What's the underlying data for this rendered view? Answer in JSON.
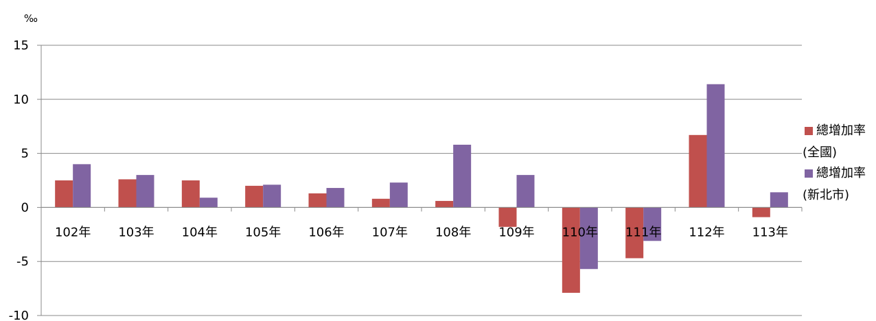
{
  "chart_data": {
    "type": "bar",
    "unit": "‰",
    "categories": [
      "102年",
      "103年",
      "104年",
      "105年",
      "106年",
      "107年",
      "108年",
      "109年",
      "110年",
      "111年",
      "112年",
      "113年"
    ],
    "series": [
      {
        "name": "總增加率(全國)",
        "color": "#C0504D",
        "values": [
          2.5,
          2.6,
          2.5,
          2.0,
          1.3,
          0.8,
          0.6,
          -1.8,
          -7.9,
          -4.7,
          6.7,
          -0.9
        ]
      },
      {
        "name": "總增加率(新北市)",
        "color": "#8064A2",
        "values": [
          4.0,
          3.0,
          0.9,
          2.1,
          1.8,
          2.3,
          5.8,
          3.0,
          -5.7,
          -3.1,
          11.4,
          1.4
        ]
      }
    ],
    "ylim": [
      -10,
      15
    ],
    "yticks": [
      -10,
      -5,
      0,
      5,
      10,
      15
    ],
    "grid": true,
    "legend_position": "right"
  }
}
